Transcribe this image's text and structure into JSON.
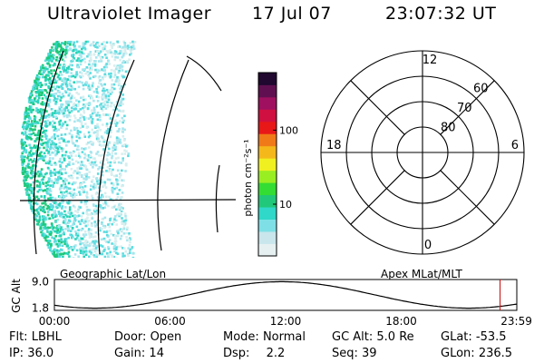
{
  "header": {
    "instrument": "Ultraviolet Imager",
    "date": "17 Jul 07",
    "time": "23:07:32 UT"
  },
  "colorbar": {
    "unit_label": "photon cm⁻²s⁻¹",
    "ticks": [
      "100",
      "10"
    ],
    "tick_values": [
      100,
      10
    ],
    "scale": "log",
    "range": [
      2,
      600
    ],
    "colors": [
      "#e6f0f0",
      "#c8e6ec",
      "#7ee0e6",
      "#2fd8c8",
      "#22c87a",
      "#33dd33",
      "#99ee22",
      "#f0f020",
      "#f4b81a",
      "#f07a18",
      "#e81818",
      "#d01040",
      "#a01060",
      "#601050",
      "#200830"
    ]
  },
  "geo_map": {
    "label": "Geographic Lat/Lon",
    "aurora_colors": [
      "#d8eeee",
      "#a8e6ee",
      "#5cdce0",
      "#28d4b8",
      "#20c878"
    ]
  },
  "polar_plot": {
    "label": "Apex MLat/MLT",
    "mlt_labels": [
      {
        "text": "12",
        "angle": 0
      },
      {
        "text": "6",
        "angle": 90
      },
      {
        "text": "0",
        "angle": 180
      },
      {
        "text": "18",
        "angle": 270
      }
    ],
    "lat_labels": [
      {
        "text": "60",
        "lat": 60
      },
      {
        "text": "70",
        "lat": 70
      },
      {
        "text": "80",
        "lat": 80
      }
    ],
    "lat_circles": [
      50,
      60,
      70,
      80
    ]
  },
  "altitude_plot": {
    "ylabel": "GC Alt",
    "yticks": [
      "9.0",
      "1.8"
    ],
    "ytick_values": [
      9.0,
      1.8
    ],
    "xticks": [
      "00:00",
      "06:00",
      "12:00",
      "18:00",
      "23:59"
    ],
    "xtick_hours": [
      0,
      6,
      12,
      18,
      23.98
    ],
    "current_hour": 23.13,
    "marker_color": "#cc2222"
  },
  "info": {
    "filter_label": "Flt:",
    "filter_value": "LBHL",
    "door_label": "Door:",
    "door_value": "Open",
    "mode_label": "Mode:",
    "mode_value": "Normal",
    "gcalt_label": "GC Alt:",
    "gcalt_value": "5.0 Re",
    "glat_label": "GLat:",
    "glat_value": "-53.5",
    "ip_label": "IP:",
    "ip_value": "36.0",
    "gain_label": "Gain:",
    "gain_value": "14",
    "dsp_label": "Dsp:",
    "dsp_value": "2.2",
    "seq_label": "Seq:",
    "seq_value": "39",
    "glon_label": "GLon:",
    "glon_value": "236.5"
  }
}
